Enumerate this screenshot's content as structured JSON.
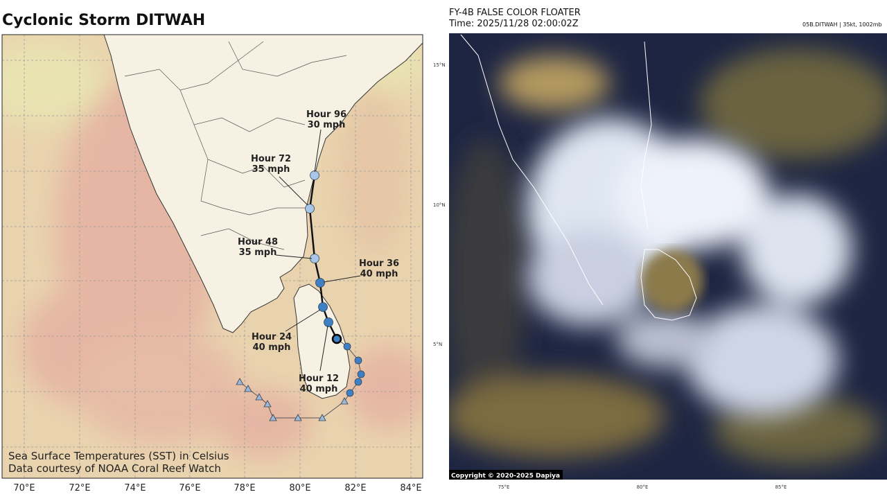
{
  "left_panel": {
    "title": "Cyclonic Storm DITWAH",
    "lon_labels": [
      "70°E",
      "72°E",
      "74°E",
      "76°E",
      "78°E",
      "80°E",
      "82°E",
      "84°E"
    ],
    "forecast_labels": [
      {
        "hour": "Hour 96",
        "speed": "30 mph"
      },
      {
        "hour": "Hour 72",
        "speed": "35 mph"
      },
      {
        "hour": "Hour 48",
        "speed": "35 mph"
      },
      {
        "hour": "Hour 36",
        "speed": "40 mph"
      },
      {
        "hour": "Hour 24",
        "speed": "40 mph"
      },
      {
        "hour": "Hour 12",
        "speed": "40 mph"
      }
    ],
    "footnote": [
      "Sea Surface Temperatures (SST) in Celsius",
      "Data courtesy of NOAA Coral Reef Watch"
    ]
  },
  "right_panel": {
    "title": "FY-4B FALSE COLOR FLOATER",
    "time": "Time: 2025/11/28 02:00:02Z",
    "storm_info": "05B.DITWAH | 35kt, 1002mb",
    "lat_labels": [
      "15°N",
      "10°N",
      "5°N"
    ],
    "lon_labels": [
      "75°E",
      "80°E",
      "85°E"
    ],
    "copyright": "Copyright © 2020-2025 Dapiya"
  }
}
